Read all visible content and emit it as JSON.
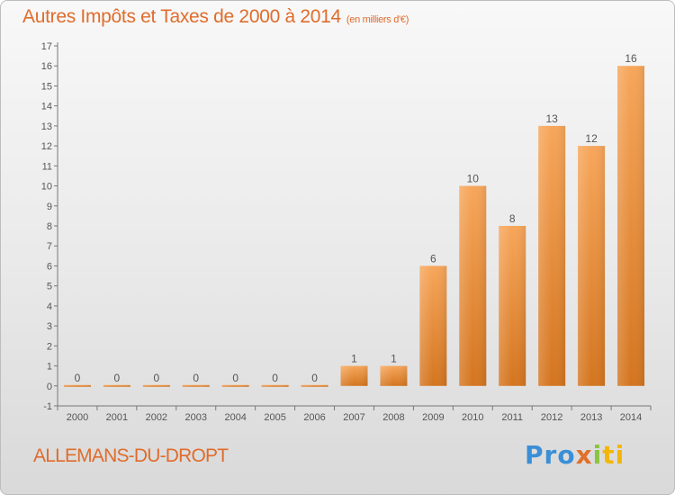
{
  "header": {
    "title": "Autres Impôts et Taxes de 2000 à 2014",
    "subtitle": "(en milliers d'€)"
  },
  "footer": {
    "commune": "ALLEMANS-DU-DROPT",
    "logo": {
      "part1": "Pro",
      "part2": "x",
      "part3": "i",
      "part4": "ti"
    }
  },
  "colors": {
    "title": "#e06c2c",
    "bar_top": "#f7a65a",
    "bar_bottom": "#d4751f",
    "label": "#555555"
  },
  "chart_data": {
    "type": "bar",
    "title": "Autres Impôts et Taxes de 2000 à 2014",
    "subtitle": "(en milliers d'€)",
    "categories": [
      "2000",
      "2001",
      "2002",
      "2003",
      "2004",
      "2005",
      "2006",
      "2007",
      "2008",
      "2009",
      "2010",
      "2011",
      "2012",
      "2013",
      "2014"
    ],
    "values": [
      0,
      0,
      0,
      0,
      0,
      0,
      0,
      1,
      1,
      6,
      10,
      8,
      13,
      12,
      16
    ],
    "data_labels": [
      "0",
      "0",
      "0",
      "0",
      "0",
      "0",
      "0",
      "1",
      "1",
      "6",
      "10",
      "8",
      "13",
      "12",
      "16"
    ],
    "yticks": [
      "-1",
      "0",
      "1",
      "2",
      "3",
      "4",
      "5",
      "6",
      "7",
      "8",
      "9",
      "10",
      "11",
      "12",
      "13",
      "14",
      "15",
      "16",
      "17"
    ],
    "ylim": [
      -1,
      17
    ],
    "xlabel": "",
    "ylabel": "",
    "grid": false,
    "legend": "none"
  }
}
